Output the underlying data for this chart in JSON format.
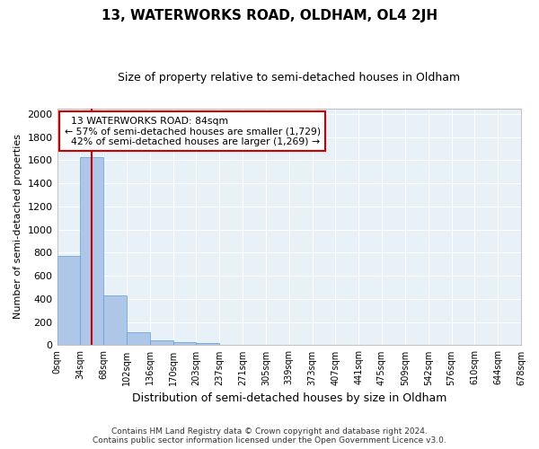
{
  "title": "13, WATERWORKS ROAD, OLDHAM, OL4 2JH",
  "subtitle": "Size of property relative to semi-detached houses in Oldham",
  "xlabel": "Distribution of semi-detached houses by size in Oldham",
  "ylabel": "Number of semi-detached properties",
  "property_label": "13 WATERWORKS ROAD: 84sqm",
  "pct_smaller": 57,
  "n_smaller": 1729,
  "pct_larger": 42,
  "n_larger": 1269,
  "bin_labels": [
    "0sqm",
    "34sqm",
    "68sqm",
    "102sqm",
    "136sqm",
    "170sqm",
    "203sqm",
    "237sqm",
    "271sqm",
    "305sqm",
    "339sqm",
    "373sqm",
    "407sqm",
    "441sqm",
    "475sqm",
    "509sqm",
    "542sqm",
    "576sqm",
    "610sqm",
    "644sqm",
    "678sqm"
  ],
  "bin_values": [
    770,
    1630,
    430,
    113,
    45,
    27,
    18,
    5,
    0,
    0,
    0,
    0,
    0,
    0,
    0,
    0,
    0,
    0,
    0,
    0
  ],
  "bar_color": "#aec6e8",
  "bar_edge_color": "#5a9fd4",
  "vline_color": "#cc0000",
  "box_edge_color": "#cc0000",
  "background_color": "#e8f0f8",
  "grid_color": "#ffffff",
  "ylim": [
    0,
    2050
  ],
  "yticks": [
    0,
    200,
    400,
    600,
    800,
    1000,
    1200,
    1400,
    1600,
    1800,
    2000
  ],
  "footer_line1": "Contains HM Land Registry data © Crown copyright and database right 2024.",
  "footer_line2": "Contains public sector information licensed under the Open Government Licence v3.0."
}
